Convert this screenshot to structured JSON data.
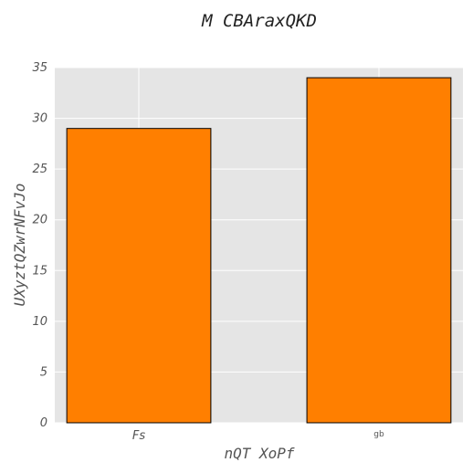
{
  "chart_data": {
    "type": "bar",
    "title": "M CBAraxQKD",
    "xlabel": "nQT XoPf",
    "ylabel": "UXyztQZwrNFvJo",
    "categories": [
      "Fs",
      "gb"
    ],
    "values": [
      29,
      34
    ],
    "ylim": [
      0,
      35
    ],
    "yticks": [
      0,
      5,
      10,
      15,
      20,
      25,
      30,
      35
    ],
    "grid": true,
    "bar_color": "#ff7f00",
    "bar_edge_color": "#000000",
    "plot_background": "#e5e5e5",
    "grid_color": "#ffffff"
  }
}
